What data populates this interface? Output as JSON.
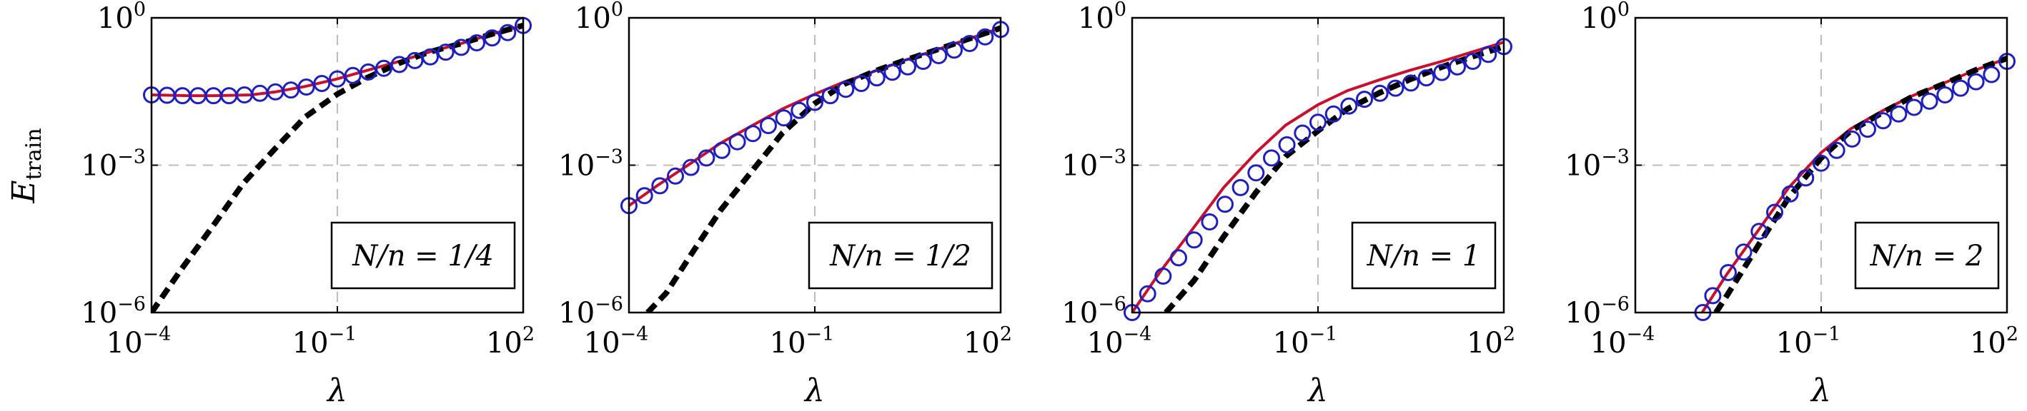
{
  "chart_data": [
    {
      "type": "line",
      "legend": "N/n = 1/4",
      "xlabel": "λ",
      "ylabel": "E",
      "ylabel_sub": "train",
      "xscale": "log",
      "yscale": "log",
      "xlim": [
        0.0001,
        100
      ],
      "ylim": [
        1e-06,
        1
      ],
      "xticks": [
        {
          "base": "10",
          "exp": "−4"
        },
        {
          "base": "10",
          "exp": "−1"
        },
        {
          "base": "10",
          "exp": "2"
        }
      ],
      "yticks": [
        {
          "base": "10",
          "exp": "0"
        },
        {
          "base": "10",
          "exp": "−3"
        },
        {
          "base": "10",
          "exp": "−6"
        }
      ],
      "grid": "dashed at 1e-1 and 1e-3",
      "legend_position": "bottom-right",
      "series": [
        {
          "style": "solid-red",
          "x": [
            0.0001,
            0.0004,
            0.001,
            0.004,
            0.01,
            0.03,
            0.1,
            0.3,
            1,
            3,
            10,
            30,
            100
          ],
          "y": [
            0.027,
            0.026,
            0.026,
            0.027,
            0.031,
            0.04,
            0.057,
            0.085,
            0.13,
            0.2,
            0.3,
            0.46,
            0.7
          ]
        },
        {
          "style": "blue-circles",
          "x": [
            0.0001,
            0.000178,
            0.000316,
            0.000562,
            0.001,
            0.00178,
            0.00316,
            0.00562,
            0.01,
            0.0178,
            0.0316,
            0.0562,
            0.1,
            0.178,
            0.316,
            0.562,
            1,
            1.78,
            3.16,
            5.62,
            10,
            17.8,
            31.6,
            56.2,
            100
          ],
          "y": [
            0.027,
            0.0265,
            0.026,
            0.026,
            0.026,
            0.026,
            0.027,
            0.029,
            0.031,
            0.034,
            0.039,
            0.046,
            0.057,
            0.067,
            0.079,
            0.094,
            0.112,
            0.135,
            0.16,
            0.2,
            0.25,
            0.31,
            0.39,
            0.5,
            0.7
          ]
        },
        {
          "style": "black-dashed",
          "x": [
            0.0001,
            0.0003,
            0.001,
            0.003,
            0.01,
            0.03,
            0.1,
            0.3,
            1,
            3,
            10,
            30,
            100
          ],
          "y": [
            1e-06,
            7.5e-06,
            6e-05,
            0.00042,
            0.0022,
            0.0095,
            0.028,
            0.06,
            0.12,
            0.2,
            0.3,
            0.46,
            0.7
          ]
        }
      ]
    },
    {
      "type": "line",
      "legend": "N/n = 1/2",
      "xlabel": "λ",
      "xscale": "log",
      "yscale": "log",
      "xlim": [
        0.0001,
        100
      ],
      "ylim": [
        1e-06,
        1
      ],
      "xticks": [
        {
          "base": "10",
          "exp": "−4"
        },
        {
          "base": "10",
          "exp": "−1"
        },
        {
          "base": "10",
          "exp": "2"
        }
      ],
      "yticks": [
        {
          "base": "10",
          "exp": "0"
        },
        {
          "base": "10",
          "exp": "−3"
        },
        {
          "base": "10",
          "exp": "−6"
        }
      ],
      "legend_position": "bottom-right",
      "series": [
        {
          "style": "solid-red",
          "x": [
            0.0001,
            0.0003,
            0.001,
            0.003,
            0.01,
            0.03,
            0.1,
            0.3,
            1,
            3,
            10,
            30,
            100
          ],
          "y": [
            0.00015,
            0.0004,
            0.0011,
            0.0028,
            0.0065,
            0.014,
            0.028,
            0.05,
            0.085,
            0.14,
            0.23,
            0.37,
            0.62
          ]
        },
        {
          "style": "blue-circles",
          "x": [
            0.0001,
            0.000178,
            0.000316,
            0.000562,
            0.001,
            0.00178,
            0.00316,
            0.00562,
            0.01,
            0.0178,
            0.0316,
            0.0562,
            0.1,
            0.178,
            0.316,
            0.562,
            1,
            1.78,
            3.16,
            5.62,
            10,
            17.8,
            31.6,
            56.2,
            100
          ],
          "y": [
            0.00015,
            0.00024,
            0.00038,
            0.0006,
            0.0009,
            0.0014,
            0.002,
            0.003,
            0.0044,
            0.0064,
            0.0092,
            0.013,
            0.019,
            0.026,
            0.035,
            0.046,
            0.06,
            0.078,
            0.1,
            0.13,
            0.17,
            0.22,
            0.3,
            0.41,
            0.58
          ]
        },
        {
          "style": "black-dashed",
          "x": [
            0.0002,
            0.0004,
            0.001,
            0.003,
            0.01,
            0.03,
            0.1,
            0.3,
            1,
            3,
            10,
            30,
            100
          ],
          "y": [
            1e-06,
            2.5e-06,
            1.5e-05,
            0.00012,
            0.0008,
            0.0045,
            0.018,
            0.045,
            0.085,
            0.14,
            0.23,
            0.37,
            0.62
          ]
        }
      ]
    },
    {
      "type": "line",
      "legend": "N/n = 1",
      "xlabel": "λ",
      "xscale": "log",
      "yscale": "log",
      "xlim": [
        0.0001,
        100
      ],
      "ylim": [
        1e-06,
        1
      ],
      "xticks": [
        {
          "base": "10",
          "exp": "−4"
        },
        {
          "base": "10",
          "exp": "−1"
        },
        {
          "base": "10",
          "exp": "2"
        }
      ],
      "yticks": [
        {
          "base": "10",
          "exp": "0"
        },
        {
          "base": "10",
          "exp": "−3"
        },
        {
          "base": "10",
          "exp": "−6"
        }
      ],
      "legend_position": "bottom-right",
      "series": [
        {
          "style": "solid-red",
          "x": [
            0.0001,
            0.0003,
            0.001,
            0.003,
            0.01,
            0.03,
            0.1,
            0.3,
            1,
            3,
            10,
            30,
            100
          ],
          "y": [
            1e-06,
            7.5e-06,
            5.5e-05,
            0.00035,
            0.0018,
            0.0065,
            0.017,
            0.033,
            0.055,
            0.085,
            0.13,
            0.2,
            0.32
          ]
        },
        {
          "style": "blue-circles",
          "x": [
            0.0001,
            0.000178,
            0.000316,
            0.000562,
            0.001,
            0.00178,
            0.00316,
            0.00562,
            0.01,
            0.0178,
            0.0316,
            0.0562,
            0.1,
            0.178,
            0.316,
            0.562,
            1,
            1.78,
            3.16,
            5.62,
            10,
            17.8,
            31.6,
            56.2,
            100
          ],
          "y": [
            1e-06,
            2.4e-06,
            5.5e-06,
            1.3e-05,
            3e-05,
            7e-05,
            0.00016,
            0.00035,
            0.0007,
            0.0014,
            0.0026,
            0.0045,
            0.0075,
            0.011,
            0.016,
            0.022,
            0.029,
            0.037,
            0.047,
            0.06,
            0.077,
            0.1,
            0.13,
            0.18,
            0.26
          ]
        },
        {
          "style": "black-dashed",
          "x": [
            0.00035,
            0.001,
            0.003,
            0.01,
            0.03,
            0.1,
            0.3,
            1,
            3,
            10,
            30,
            100
          ],
          "y": [
            1e-06,
            4.5e-06,
            3.5e-05,
            0.00028,
            0.0015,
            0.005,
            0.014,
            0.03,
            0.055,
            0.1,
            0.16,
            0.26
          ]
        }
      ]
    },
    {
      "type": "line",
      "legend": "N/n = 2",
      "xlabel": "λ",
      "xscale": "log",
      "yscale": "log",
      "xlim": [
        0.0001,
        100
      ],
      "ylim": [
        1e-06,
        1
      ],
      "xticks": [
        {
          "base": "10",
          "exp": "−4"
        },
        {
          "base": "10",
          "exp": "−1"
        },
        {
          "base": "10",
          "exp": "2"
        }
      ],
      "yticks": [
        {
          "base": "10",
          "exp": "0"
        },
        {
          "base": "10",
          "exp": "−3"
        },
        {
          "base": "10",
          "exp": "−6"
        }
      ],
      "legend_position": "bottom-right",
      "series": [
        {
          "style": "solid-red",
          "x": [
            0.0012,
            0.003,
            0.01,
            0.03,
            0.1,
            0.3,
            1,
            3,
            10,
            30,
            100
          ],
          "y": [
            1e-06,
            6e-06,
            5e-05,
            0.00035,
            0.0018,
            0.0055,
            0.013,
            0.026,
            0.048,
            0.085,
            0.15
          ]
        },
        {
          "style": "blue-circles",
          "x": [
            0.00123,
            0.00178,
            0.00316,
            0.00562,
            0.01,
            0.0178,
            0.0316,
            0.0562,
            0.1,
            0.178,
            0.316,
            0.562,
            1,
            1.78,
            3.16,
            5.62,
            10,
            17.8,
            31.6,
            56.2,
            100
          ],
          "y": [
            1e-06,
            2.2e-06,
            6.5e-06,
            1.7e-05,
            4.5e-05,
            0.00011,
            0.00026,
            0.00055,
            0.0011,
            0.002,
            0.0034,
            0.0054,
            0.008,
            0.011,
            0.015,
            0.02,
            0.027,
            0.037,
            0.05,
            0.07,
            0.13
          ]
        },
        {
          "style": "black-dashed",
          "x": [
            0.002,
            0.003,
            0.01,
            0.03,
            0.1,
            0.3,
            1,
            3,
            10,
            30,
            100
          ],
          "y": [
            1e-06,
            2.2e-06,
            2.5e-05,
            0.00022,
            0.0014,
            0.005,
            0.012,
            0.025,
            0.046,
            0.085,
            0.15
          ]
        }
      ]
    }
  ]
}
